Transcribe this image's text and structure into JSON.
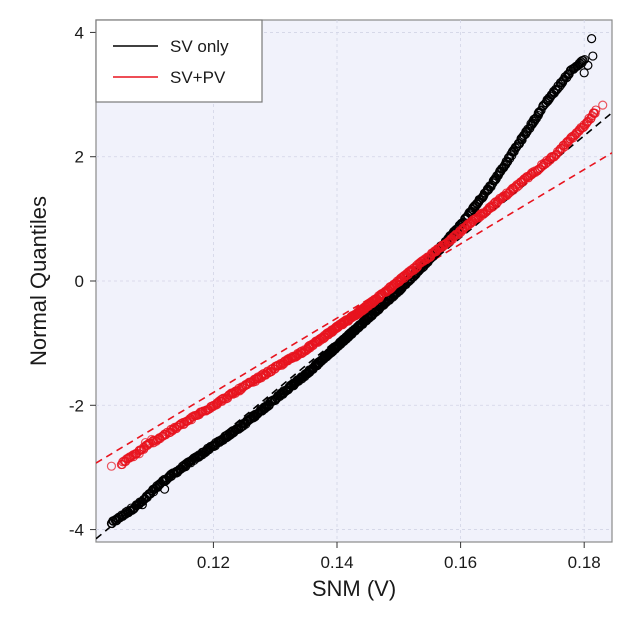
{
  "chart_data": {
    "type": "scatter",
    "subtype": "normal-qq-plot",
    "xlabel": "SNM (V)",
    "ylabel": "Normal Quantiles",
    "xlim": [
      0.101,
      0.1845
    ],
    "ylim": [
      -4.2,
      4.2
    ],
    "x_ticks": [
      0.12,
      0.14,
      0.16,
      0.18
    ],
    "x_tick_labels": [
      "0.12",
      "0.14",
      "0.16",
      "0.18"
    ],
    "y_ticks": [
      -4,
      -2,
      0,
      2,
      4
    ],
    "y_tick_labels": [
      "-4",
      "-2",
      "0",
      "2",
      "4"
    ],
    "grid": true,
    "legend_position": "top-left",
    "series": [
      {
        "name": "SV only",
        "color": "#000000",
        "marker": "open-circle",
        "mean": 0.1515,
        "sd": 0.01218,
        "reference_line": {
          "slope": 82.1,
          "intercept": -12.44
        },
        "quantile_curve": {
          "x": [
            0.1035,
            0.1085,
            0.1115,
            0.115,
            0.12,
            0.125,
            0.13,
            0.135,
            0.14,
            0.145,
            0.15,
            0.155,
            0.16,
            0.165,
            0.17,
            0.172,
            0.174,
            0.176,
            0.178,
            0.18
          ],
          "y": [
            -3.9,
            -3.55,
            -3.25,
            -3.0,
            -2.65,
            -2.3,
            -1.9,
            -1.5,
            -1.05,
            -0.6,
            -0.15,
            0.35,
            0.9,
            1.55,
            2.3,
            2.6,
            2.9,
            3.15,
            3.4,
            3.55
          ]
        },
        "outliers": [
          {
            "x": 0.1035,
            "y": -3.9
          },
          {
            "x": 0.1085,
            "y": -3.6
          },
          {
            "x": 0.1092,
            "y": -3.47
          },
          {
            "x": 0.1121,
            "y": -3.35
          },
          {
            "x": 0.18,
            "y": 3.35
          },
          {
            "x": 0.1806,
            "y": 3.47
          },
          {
            "x": 0.1814,
            "y": 3.62
          },
          {
            "x": 0.1812,
            "y": 3.9
          }
        ]
      },
      {
        "name": "SV+PV",
        "color": "#e8141e",
        "marker": "open-circle",
        "mean": 0.15,
        "sd": 0.01673,
        "reference_line": {
          "slope": 59.8,
          "intercept": -8.97
        },
        "quantile_curve": {
          "x": [
            0.105,
            0.11,
            0.115,
            0.12,
            0.125,
            0.13,
            0.135,
            0.14,
            0.145,
            0.15,
            0.155,
            0.16,
            0.165,
            0.17,
            0.175,
            0.18,
            0.182
          ],
          "y": [
            -2.95,
            -2.6,
            -2.3,
            -2.0,
            -1.7,
            -1.4,
            -1.1,
            -0.75,
            -0.4,
            0.0,
            0.4,
            0.8,
            1.2,
            1.6,
            2.0,
            2.5,
            2.75
          ]
        },
        "outliers": [
          {
            "x": 0.1035,
            "y": -2.98
          },
          {
            "x": 0.108,
            "y": -2.78
          },
          {
            "x": 0.109,
            "y": -2.6
          },
          {
            "x": 0.11,
            "y": -2.55
          },
          {
            "x": 0.1815,
            "y": 2.7
          },
          {
            "x": 0.183,
            "y": 2.83
          }
        ]
      }
    ]
  }
}
